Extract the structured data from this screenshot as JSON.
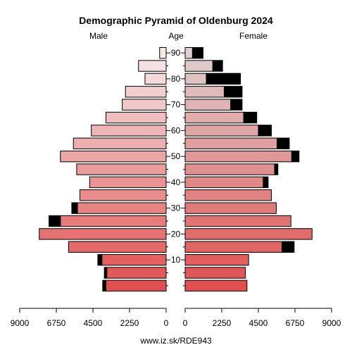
{
  "chart_data": {
    "type": "bar",
    "title": "Demographic Pyramid of Oldenburg 2024",
    "left_label": "Male",
    "center_label": "Age",
    "right_label": "Female",
    "footer": "www.iz.sk/RDE943",
    "age_ticks": [
      "90",
      "80",
      "70",
      "60",
      "50",
      "40",
      "30",
      "20",
      "10"
    ],
    "x_ticks_left": [
      "9000",
      "6750",
      "4500",
      "2250",
      "0"
    ],
    "x_ticks_right": [
      "0",
      "2250",
      "4500",
      "6750",
      "9000"
    ],
    "xlim": [
      0,
      9000
    ],
    "age_groups": [
      "90+",
      "85-89",
      "80-84",
      "75-79",
      "70-74",
      "65-69",
      "60-64",
      "55-59",
      "50-54",
      "45-49",
      "40-44",
      "35-39",
      "30-34",
      "25-29",
      "20-24",
      "15-19",
      "10-14",
      "5-9",
      "0-4"
    ],
    "note": "total = full bar length; black segment = foreigners",
    "male_total": [
      400,
      1700,
      1300,
      2500,
      2700,
      3700,
      4600,
      5700,
      6500,
      5500,
      4700,
      5300,
      5800,
      7200,
      7800,
      6000,
      4200,
      3800,
      3900
    ],
    "male_foreign": [
      0,
      0,
      0,
      0,
      0,
      0,
      0,
      0,
      0,
      0,
      0,
      0,
      350,
      700,
      0,
      0,
      250,
      150,
      200
    ],
    "female_total": [
      1100,
      2300,
      3400,
      3500,
      3500,
      4400,
      5300,
      6400,
      7000,
      5700,
      5100,
      5300,
      5600,
      6500,
      7800,
      6700,
      3900,
      3700,
      3800
    ],
    "female_foreign": [
      650,
      600,
      2100,
      1100,
      700,
      800,
      800,
      750,
      450,
      200,
      300,
      0,
      0,
      0,
      0,
      750,
      0,
      0,
      0
    ],
    "colors": {
      "male_light": "#f5eaea",
      "male_dark": "#e05050",
      "female_light": "#e0d0d0",
      "female_dark": "#e05050",
      "foreign": "#000000",
      "stroke": "#000000"
    }
  }
}
